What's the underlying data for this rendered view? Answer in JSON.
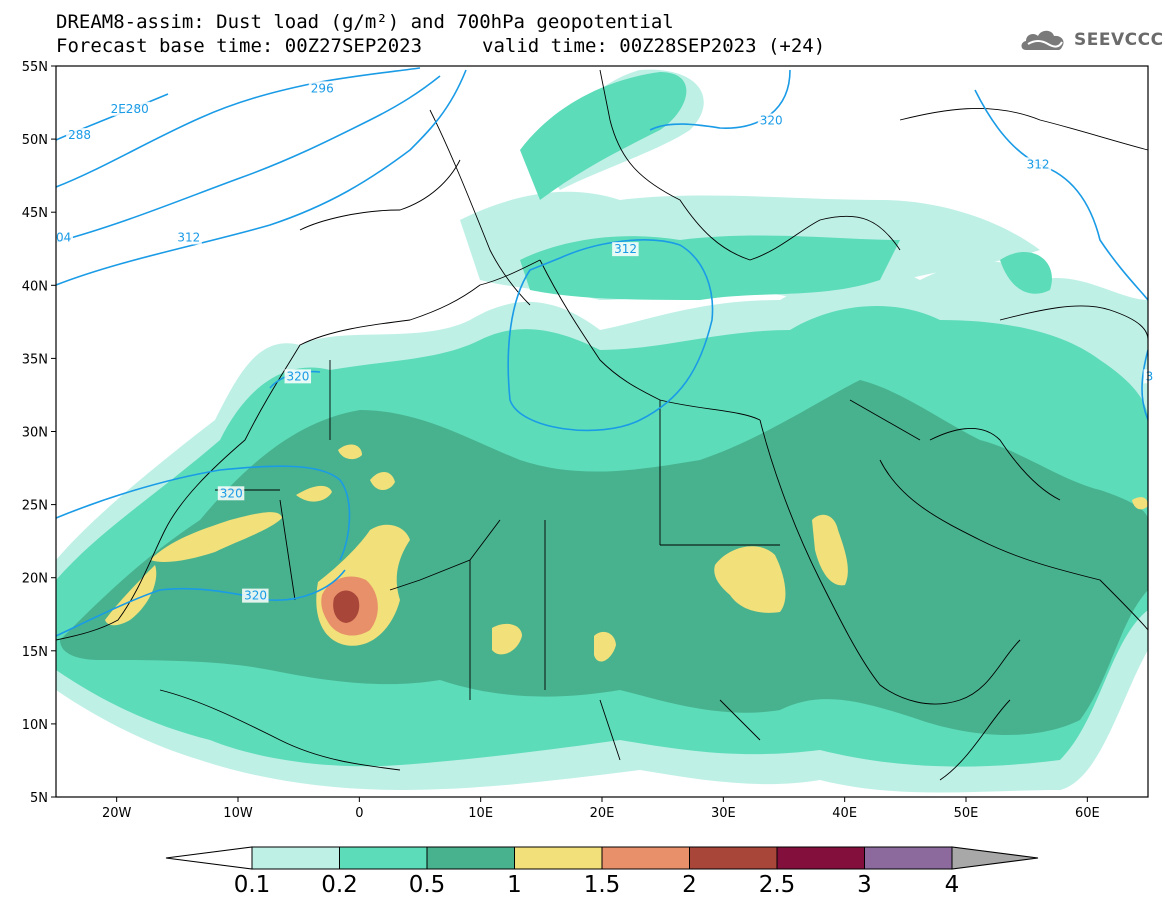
{
  "title": {
    "line1": "DREAM8-assim: Dust load (g/m²) and 700hPa geopotential",
    "line2_left": "Forecast base time: 00Z27SEP2023",
    "line2_right": "valid time: 00Z28SEP2023 (+24)"
  },
  "logo": {
    "text": "SEEVCCC",
    "icon": "cloud-icon"
  },
  "axes": {
    "lat_labels": [
      "55N",
      "50N",
      "45N",
      "40N",
      "35N",
      "30N",
      "25N",
      "20N",
      "15N",
      "10N",
      "5N"
    ],
    "lon_labels": [
      "20W",
      "10W",
      "0",
      "10E",
      "20E",
      "30E",
      "40E",
      "50E",
      "60E"
    ],
    "lat_range": [
      5,
      55
    ],
    "lon_range": [
      -25,
      65
    ]
  },
  "contours": {
    "labels": [
      {
        "text": "2E280",
        "lon": -20.5,
        "lat": 51.8
      },
      {
        "text": "288",
        "lon": -24,
        "lat": 50.0
      },
      {
        "text": "296",
        "lon": -4,
        "lat": 53.2
      },
      {
        "text": "04",
        "lon": -25,
        "lat": 43.0
      },
      {
        "text": "312",
        "lon": -15,
        "lat": 43.0
      },
      {
        "text": "312",
        "lon": 21,
        "lat": 42.2
      },
      {
        "text": "320",
        "lon": 33,
        "lat": 51.0
      },
      {
        "text": "312",
        "lon": 55,
        "lat": 48.0
      },
      {
        "text": "320",
        "lon": -6,
        "lat": 33.5
      },
      {
        "text": "320",
        "lon": -11.5,
        "lat": 25.5
      },
      {
        "text": "320",
        "lon": -9.5,
        "lat": 18.5
      },
      {
        "text": "3",
        "lon": 64.8,
        "lat": 33.5
      }
    ]
  },
  "colorbar": {
    "labels": [
      "0.1",
      "0.2",
      "0.5",
      "1",
      "1.5",
      "2",
      "2.5",
      "3",
      "4"
    ],
    "colors": [
      "#bff0e6",
      "#5ddcba",
      "#48b28e",
      "#f2e07a",
      "#e8906a",
      "#a8463a",
      "#820f3c",
      "#8c6a9e"
    ],
    "lower_arrow_color": "#ffffff",
    "upper_arrow_color": "#a8a8a8"
  },
  "palette": {
    "contour_line": "#1a9be6",
    "coast_line": "#000000"
  }
}
